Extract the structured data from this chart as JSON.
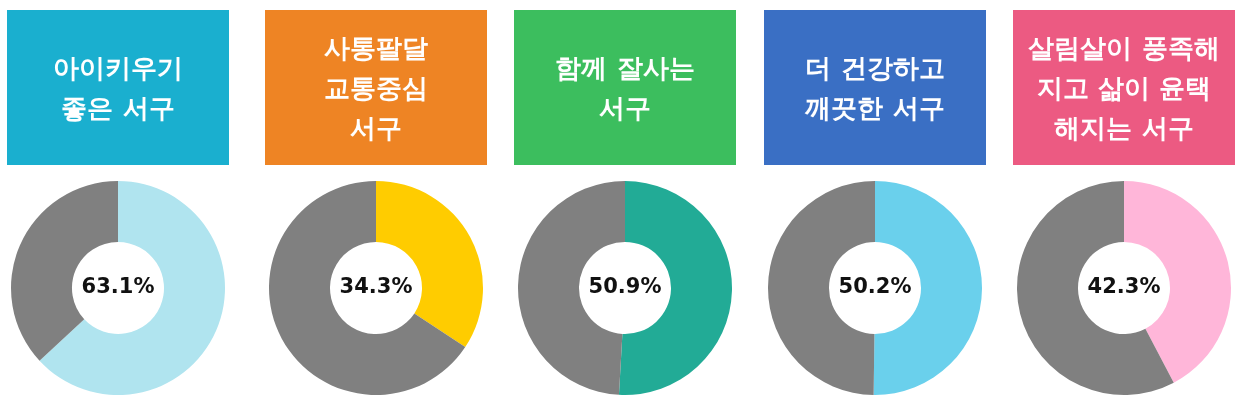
{
  "chart_data": [
    {
      "type": "donut",
      "title": "아이키우기\n좋은 서구",
      "categories": [
        null,
        null
      ],
      "values": [
        63.1,
        36.9
      ],
      "colors": [
        "#b0e4ef",
        "#808080"
      ],
      "value_labels": [
        "63.1%",
        null
      ]
    },
    {
      "type": "donut",
      "title": "사통팔달\n교통중심\n서구",
      "categories": [
        null,
        null
      ],
      "values": [
        34.3,
        65.7
      ],
      "colors": [
        "#ffcc00",
        "#808080"
      ],
      "value_labels": [
        "34.3%",
        null
      ]
    },
    {
      "type": "donut",
      "title": "함께 잘사는\n서구",
      "categories": [
        null,
        null
      ],
      "values": [
        50.9,
        49.1
      ],
      "colors": [
        "#22ab96",
        "#808080"
      ],
      "value_labels": [
        "50.9%",
        null
      ]
    },
    {
      "type": "donut",
      "title": "더 건강하고\n깨끗한 서구",
      "categories": [
        null,
        null
      ],
      "values": [
        50.2,
        49.8
      ],
      "colors": [
        "#6ad0ec",
        "#808080"
      ],
      "value_labels": [
        "50.2%",
        null
      ]
    },
    {
      "type": "donut",
      "title": "살림살이 풍족해\n지고 삶이 윤택\n해지는 서구",
      "categories": [
        null,
        null
      ],
      "values": [
        42.3,
        57.7
      ],
      "colors": [
        "#ffb6d9",
        "#808080"
      ],
      "value_labels": [
        "42.3%",
        null
      ]
    }
  ]
}
